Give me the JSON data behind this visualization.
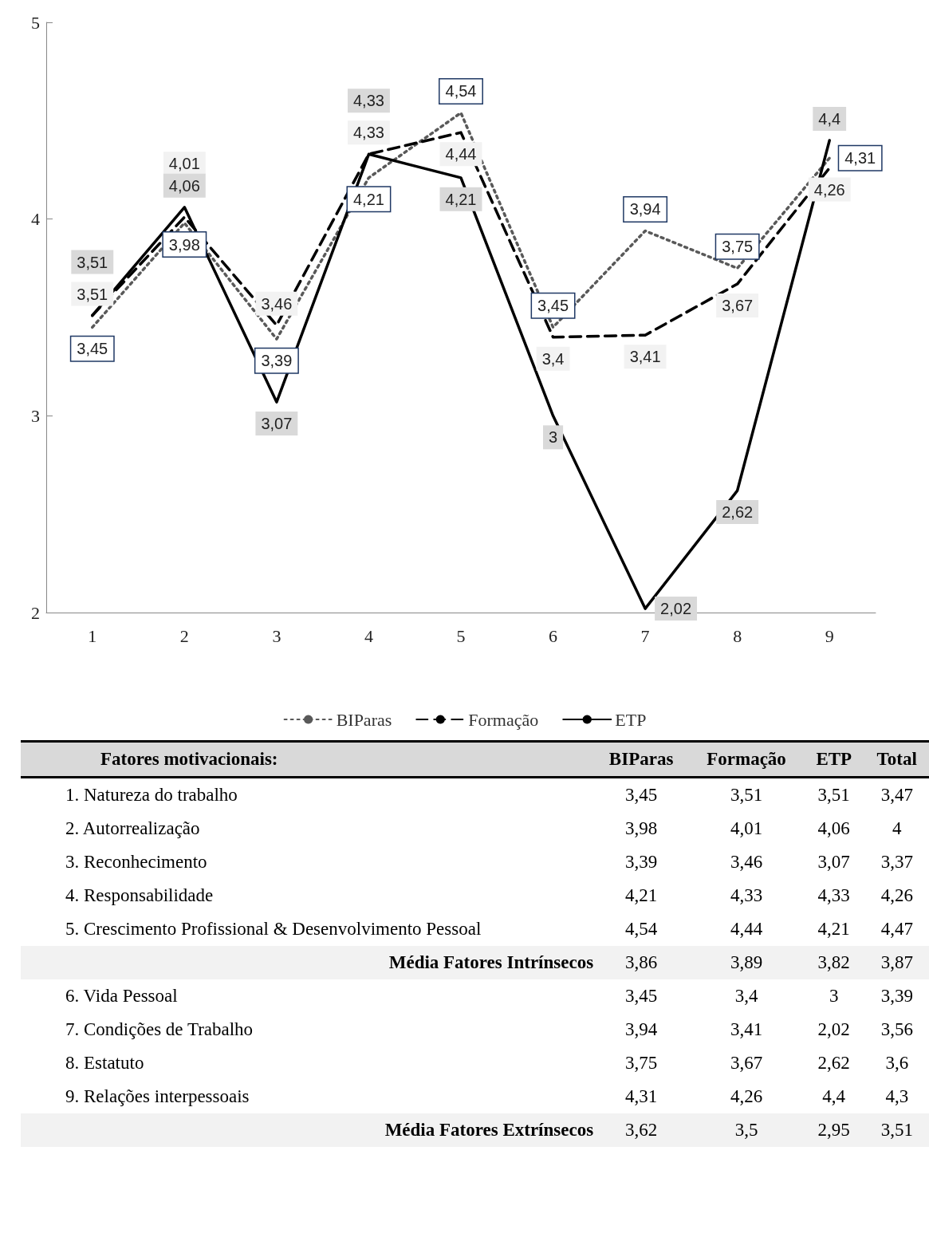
{
  "chart_data": [
    {
      "type": "line",
      "categories": [
        "1",
        "2",
        "3",
        "4",
        "5",
        "6",
        "7",
        "8",
        "9"
      ],
      "ylim": [
        2,
        5
      ],
      "yticks": [
        2,
        3,
        4,
        5
      ],
      "grid": false,
      "legend": "bottom",
      "marker": "none",
      "series": [
        {
          "name": "BIParas",
          "color": "#595959",
          "line_style": "dotted",
          "values": [
            3.45,
            3.98,
            3.39,
            4.21,
            4.54,
            3.45,
            3.94,
            3.75,
            4.31
          ],
          "value_labels": [
            "3,45",
            "3,98",
            "3,39",
            "4,21",
            "4,54",
            "3,45",
            "3,94",
            "3,75",
            "4,31"
          ]
        },
        {
          "name": "Formação",
          "color": "#000000",
          "line_style": "dashed",
          "values": [
            3.51,
            4.01,
            3.46,
            4.33,
            4.44,
            3.4,
            3.41,
            3.67,
            4.26
          ],
          "value_labels": [
            "3,51",
            "4,01",
            "3,46",
            "4,33",
            "4,44",
            "3,4",
            "3,41",
            "3,67",
            "4,26"
          ]
        },
        {
          "name": "ETP",
          "color": "#000000",
          "line_style": "solid",
          "values": [
            3.51,
            4.06,
            3.07,
            4.33,
            4.21,
            3,
            2.02,
            2.62,
            4.4
          ],
          "value_labels": [
            "3,51",
            "4,06",
            "3,07",
            "4,33",
            "4,21",
            "3",
            "2,02",
            "2,62",
            "4,4"
          ]
        }
      ]
    },
    {
      "type": "other",
      "title": "Fatores motivacionais:",
      "categories": [
        "BIParas",
        "Formação",
        "ETP",
        "Total"
      ],
      "y_categories": [
        "1. Natureza do trabalho",
        "2. Autorrealização",
        "3. Reconhecimento",
        "4. Responsabilidade",
        "5. Crescimento Profissional & Desenvolvimento Pessoal",
        "Média Fatores Intrínsecos",
        "6. Vida Pessoal",
        "7. Condições de Trabalho",
        "8. Estatuto",
        "9. Relações interpessoais",
        "Média Fatores Extrínsecos"
      ],
      "cell_labels": [
        [
          "3,45",
          "3,51",
          "3,51",
          "3,47"
        ],
        [
          "3,98",
          "4,01",
          "4,06",
          "4"
        ],
        [
          "3,39",
          "3,46",
          "3,07",
          "3,37"
        ],
        [
          "4,21",
          "4,33",
          "4,33",
          "4,26"
        ],
        [
          "4,54",
          "4,44",
          "4,21",
          "4,47"
        ],
        [
          "3,86",
          "3,89",
          "3,82",
          "3,87"
        ],
        [
          "3,45",
          "3,4",
          "3",
          "3,39"
        ],
        [
          "3,94",
          "3,41",
          "2,02",
          "3,56"
        ],
        [
          "3,75",
          "3,67",
          "2,62",
          "3,6"
        ],
        [
          "4,31",
          "4,26",
          "4,4",
          "4,3"
        ],
        [
          "3,62",
          "3,5",
          "2,95",
          "3,51"
        ]
      ]
    }
  ]
}
